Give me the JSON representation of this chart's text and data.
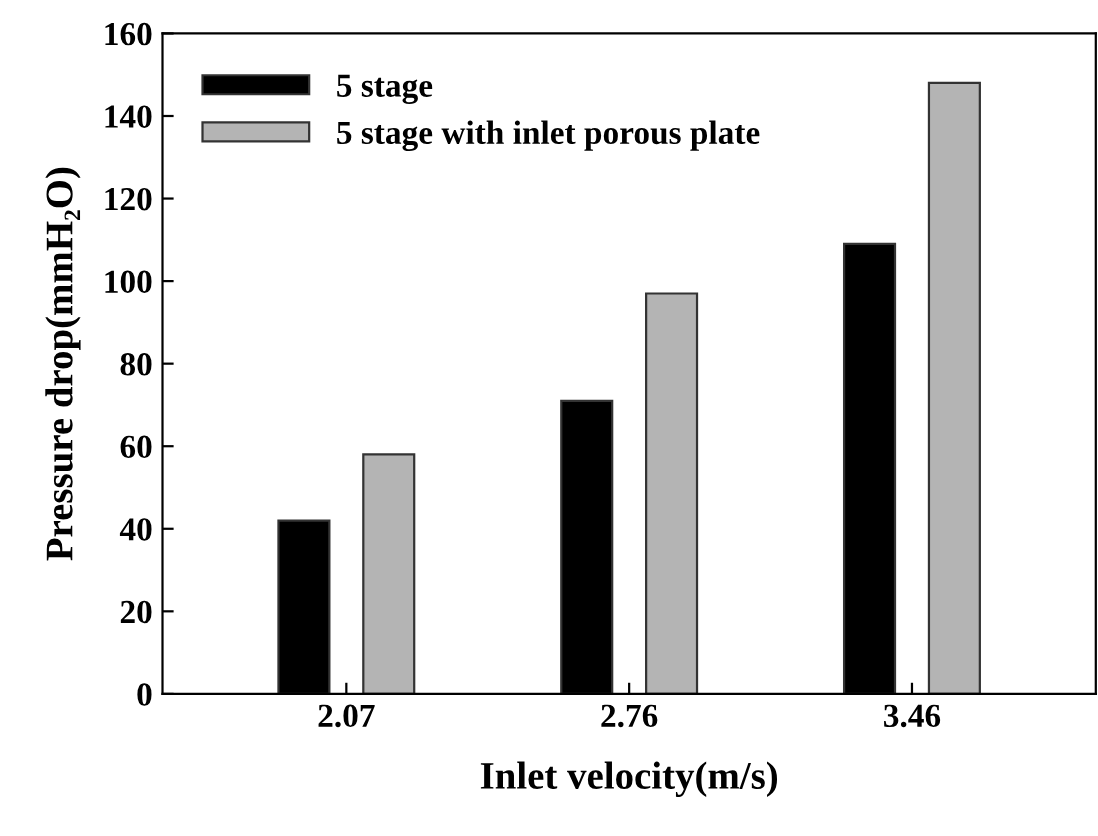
{
  "chart_data": {
    "type": "bar",
    "xlabel": "Inlet velocity(m/s)",
    "ylabel": "Pressure drop(mmH₂O)",
    "categories": [
      "2.07",
      "2.76",
      "3.46"
    ],
    "series": [
      {
        "name": "5 stage",
        "color": "#000000",
        "values": [
          42,
          71,
          109
        ]
      },
      {
        "name": "5 stage with inlet porous plate",
        "color": "#b4b4b4",
        "values": [
          58,
          97,
          148
        ]
      }
    ],
    "ylim": [
      0,
      160
    ],
    "yticks": [
      0,
      20,
      40,
      60,
      80,
      100,
      120,
      140,
      160
    ],
    "grid": false,
    "legend": "top left"
  }
}
